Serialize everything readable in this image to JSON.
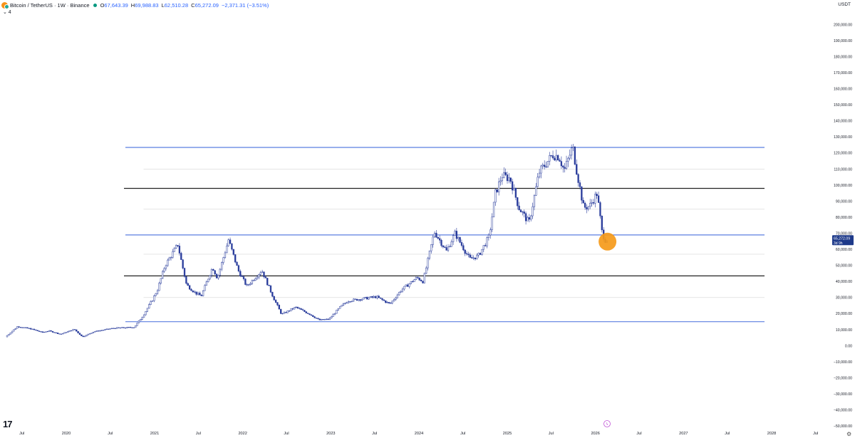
{
  "legend": {
    "title": "Bitcoin / TetherUS · 1W · Binance",
    "open_label": "O",
    "open": "67,643.39",
    "high_label": "H",
    "high": "69,988.83",
    "low_label": "L",
    "low": "62,510.28",
    "close_label": "C",
    "close": "65,272.09",
    "change": "−2,371.31 (−3.51%)",
    "collapse": "⌄ 4"
  },
  "currency": "USDT",
  "price_tag": {
    "value": "65,272.09",
    "countdown": "3d 9h"
  },
  "logo": "17",
  "colors": {
    "candle": "#2a3d9c",
    "blue_line": "#5b7fe0",
    "black_line": "#222222",
    "highlight": "#f59a1a",
    "tag_bg": "#1e3a8a"
  },
  "chart_data": {
    "type": "candlestick",
    "symbol": "Bitcoin / TetherUS",
    "interval": "1W",
    "ylim": [
      -50000,
      210000
    ],
    "y_ticks": [
      -50000,
      -40000,
      -30000,
      -20000,
      -10000,
      0,
      10000,
      20000,
      30000,
      40000,
      50000,
      60000,
      70000,
      80000,
      90000,
      100000,
      110000,
      120000,
      130000,
      140000,
      150000,
      160000,
      170000,
      180000,
      190000,
      200000
    ],
    "y_tick_labels": [
      "−50,000.00",
      "−40,000.00",
      "−30,000.00",
      "−20,000.00",
      "−10,000.00",
      "0.00",
      "10,000.00",
      "20,000.00",
      "30,000.00",
      "40,000.00",
      "50,000.00",
      "60,000.00",
      "70,000.00",
      "80,000.00",
      "90,000.00",
      "100,000.00",
      "110,000.00",
      "120,000.00",
      "130,000.00",
      "140,000.00",
      "150,000.00",
      "160,000.00",
      "170,000.00",
      "180,000.00",
      "190,000.00",
      "200,000.00"
    ],
    "x_range": [
      "2019-05-01",
      "2028-10-01"
    ],
    "x_ticks": [
      {
        "date": "2019-07-01",
        "label": "Jul"
      },
      {
        "date": "2020-01-01",
        "label": "2020"
      },
      {
        "date": "2020-07-01",
        "label": "Jul"
      },
      {
        "date": "2021-01-01",
        "label": "2021"
      },
      {
        "date": "2021-07-01",
        "label": "Jul"
      },
      {
        "date": "2022-01-01",
        "label": "2022"
      },
      {
        "date": "2022-07-01",
        "label": "Jul"
      },
      {
        "date": "2023-01-01",
        "label": "2023"
      },
      {
        "date": "2023-07-01",
        "label": "Jul"
      },
      {
        "date": "2024-01-01",
        "label": "2024"
      },
      {
        "date": "2024-07-01",
        "label": "Jul"
      },
      {
        "date": "2025-01-01",
        "label": "2025"
      },
      {
        "date": "2025-07-01",
        "label": "Jul"
      },
      {
        "date": "2026-01-01",
        "label": "2026"
      },
      {
        "date": "2026-07-01",
        "label": "Jul"
      },
      {
        "date": "2027-01-01",
        "label": "2027"
      },
      {
        "date": "2027-07-01",
        "label": "Jul"
      },
      {
        "date": "2028-01-01",
        "label": "2028"
      },
      {
        "date": "2028-07-01",
        "label": "Jul"
      }
    ],
    "price_path": [
      [
        "2019-05-01",
        5500
      ],
      [
        "2019-06-20",
        12000
      ],
      [
        "2019-08-15",
        10500
      ],
      [
        "2019-10-01",
        8300
      ],
      [
        "2019-10-28",
        9300
      ],
      [
        "2019-12-15",
        7200
      ],
      [
        "2020-02-10",
        10300
      ],
      [
        "2020-03-15",
        5500
      ],
      [
        "2020-05-01",
        8800
      ],
      [
        "2020-07-25",
        11000
      ],
      [
        "2020-10-15",
        11500
      ],
      [
        "2020-11-20",
        18500
      ],
      [
        "2020-12-31",
        29000
      ],
      [
        "2021-01-20",
        35000
      ],
      [
        "2021-02-20",
        50000
      ],
      [
        "2021-04-14",
        63000
      ],
      [
        "2021-05-20",
        38000
      ],
      [
        "2021-06-25",
        33000
      ],
      [
        "2021-07-20",
        31000
      ],
      [
        "2021-09-05",
        49000
      ],
      [
        "2021-09-25",
        42000
      ],
      [
        "2021-11-10",
        66000
      ],
      [
        "2021-12-20",
        47000
      ],
      [
        "2022-01-25",
        37000
      ],
      [
        "2022-03-28",
        47000
      ],
      [
        "2022-05-15",
        30000
      ],
      [
        "2022-06-18",
        19500
      ],
      [
        "2022-08-15",
        24000
      ],
      [
        "2022-10-15",
        19500
      ],
      [
        "2022-11-20",
        16000
      ],
      [
        "2022-12-31",
        16500
      ],
      [
        "2023-02-15",
        24000
      ],
      [
        "2023-03-20",
        28000
      ],
      [
        "2023-07-15",
        30500
      ],
      [
        "2023-09-10",
        26000
      ],
      [
        "2023-10-25",
        34500
      ],
      [
        "2023-12-31",
        42500
      ],
      [
        "2024-01-25",
        40000
      ],
      [
        "2024-03-12",
        71000
      ],
      [
        "2024-05-01",
        59000
      ],
      [
        "2024-06-05",
        70000
      ],
      [
        "2024-08-05",
        54000
      ],
      [
        "2024-09-10",
        56000
      ],
      [
        "2024-10-25",
        68000
      ],
      [
        "2024-11-20",
        95000
      ],
      [
        "2024-12-17",
        106000
      ],
      [
        "2025-01-20",
        104000
      ],
      [
        "2025-02-25",
        86000
      ],
      [
        "2025-04-08",
        76500
      ],
      [
        "2025-05-20",
        108000
      ],
      [
        "2025-07-15",
        119000
      ],
      [
        "2025-08-10",
        118000
      ],
      [
        "2025-09-01",
        109000
      ],
      [
        "2025-10-06",
        124000
      ],
      [
        "2025-10-20",
        111000
      ],
      [
        "2025-11-20",
        86000
      ],
      [
        "2025-12-15",
        87000
      ],
      [
        "2026-01-15",
        95000
      ],
      [
        "2026-02-05",
        70000
      ],
      [
        "2026-02-20",
        65272
      ]
    ],
    "horizontal_lines": [
      {
        "price": 123500,
        "color": "blue"
      },
      {
        "price": 98000,
        "color": "black"
      },
      {
        "price": 69000,
        "color": "blue"
      },
      {
        "price": 43500,
        "color": "black"
      },
      {
        "price": 15000,
        "color": "blue"
      }
    ],
    "grid_lines": [
      110000,
      85000,
      57000,
      30000
    ],
    "highlight_price": 65272.09,
    "highlight_date": "2026-02-20"
  }
}
